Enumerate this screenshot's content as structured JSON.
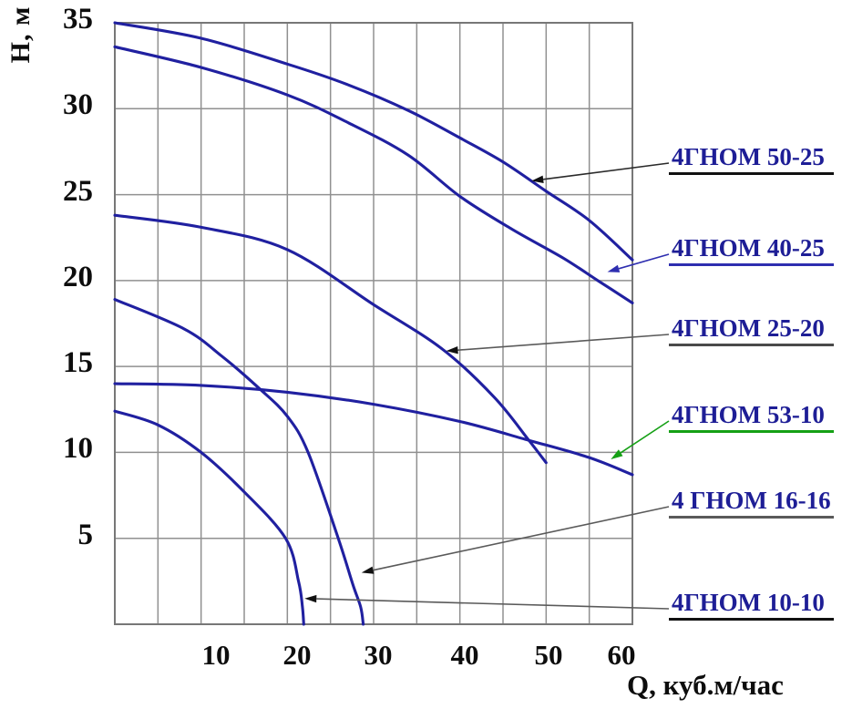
{
  "axes": {
    "y_axis_label": "H, м",
    "x_axis_label": "Q, куб.м/час"
  },
  "chart_data": {
    "type": "line",
    "title": "",
    "xlabel": "Q, куб.м/час",
    "ylabel": "H, м",
    "xlim": [
      0,
      60
    ],
    "ylim": [
      0,
      35
    ],
    "grid": true,
    "grid_step": 5,
    "x_tick_values": [
      10,
      20,
      30,
      40,
      50,
      60
    ],
    "y_tick_values": [
      35,
      30,
      25,
      20,
      15,
      10,
      5
    ],
    "curve_color": "#2020a0",
    "grid_color": "#909090",
    "border_color": "#777777",
    "label_text_color": "#1e1e96",
    "series": [
      {
        "name": "4ГНОМ 50-25",
        "points": [
          [
            0,
            35
          ],
          [
            10,
            34.1
          ],
          [
            20,
            32.6
          ],
          [
            27,
            31.4
          ],
          [
            34,
            29.9
          ],
          [
            40,
            28.3
          ],
          [
            45,
            26.9
          ],
          [
            50,
            25.2
          ],
          [
            55,
            23.5
          ],
          [
            60,
            21.2
          ]
        ]
      },
      {
        "name": "4ГНОМ 40-25",
        "points": [
          [
            0,
            33.6
          ],
          [
            10,
            32.4
          ],
          [
            20,
            30.8
          ],
          [
            27,
            29.2
          ],
          [
            34,
            27.3
          ],
          [
            40,
            24.9
          ],
          [
            46,
            23.0
          ],
          [
            52,
            21.3
          ],
          [
            56,
            20.0
          ],
          [
            60,
            18.7
          ]
        ]
      },
      {
        "name": "4ГНОМ 25-20",
        "points": [
          [
            0,
            23.8
          ],
          [
            10,
            23.1
          ],
          [
            20,
            21.8
          ],
          [
            30,
            18.6
          ],
          [
            38,
            16.0
          ],
          [
            44,
            13.2
          ],
          [
            48,
            10.7
          ],
          [
            50,
            9.4
          ]
        ]
      },
      {
        "name": "4ГНОМ 53-10",
        "points": [
          [
            0,
            14
          ],
          [
            10,
            13.9
          ],
          [
            20,
            13.5
          ],
          [
            30,
            12.8
          ],
          [
            40,
            11.8
          ],
          [
            48,
            10.7
          ],
          [
            55,
            9.7
          ],
          [
            60,
            8.7
          ]
        ]
      },
      {
        "name": "4 ГНОМ 16-16",
        "points": [
          [
            0,
            18.9
          ],
          [
            8,
            17.2
          ],
          [
            12.4,
            15.6
          ],
          [
            16.8,
            13.7
          ],
          [
            20,
            12.1
          ],
          [
            22.4,
            10
          ],
          [
            25.9,
            5
          ],
          [
            27.6,
            2.3
          ],
          [
            28.5,
            1
          ],
          [
            28.8,
            0
          ]
        ]
      },
      {
        "name": "4ГНОМ 10-10",
        "points": [
          [
            0,
            12.4
          ],
          [
            5,
            11.6
          ],
          [
            10,
            10
          ],
          [
            15,
            7.7
          ],
          [
            19.8,
            5
          ],
          [
            21.3,
            2.5
          ],
          [
            21.75,
            1
          ],
          [
            21.9,
            0
          ]
        ]
      }
    ],
    "annotations": [
      {
        "label": "4ГНОМ 50-25",
        "arrow_target": {
          "q": 48.3,
          "h": 25.8
        },
        "text_color": "#1e1e96",
        "underline_color": "#111111",
        "leader_color": "#2a2a2a",
        "arrow_color": "#111111"
      },
      {
        "label": "4ГНОМ 40-25",
        "arrow_target": {
          "q": 57.1,
          "h": 20.5
        },
        "text_color": "#1e1e96",
        "underline_color": "#2e2eb0",
        "leader_color": "#2e2eb0",
        "arrow_color": "#2e2eb0"
      },
      {
        "label": "4ГНОМ 25-20",
        "arrow_target": {
          "q": 38.4,
          "h": 15.9
        },
        "text_color": "#1e1e96",
        "underline_color": "#4a4a4a",
        "leader_color": "#5a5a5a",
        "arrow_color": "#111111"
      },
      {
        "label": "4ГНОМ 53-10",
        "arrow_target": {
          "q": 57.5,
          "h": 9.6
        },
        "text_color": "#1e1e96",
        "underline_color": "#15a015",
        "leader_color": "#15a015",
        "arrow_color": "#15a015"
      },
      {
        "label": "4 ГНОМ 16-16",
        "arrow_target": {
          "q": 28.6,
          "h": 3.0
        },
        "text_color": "#1e1e96",
        "underline_color": "#5a5a5a",
        "leader_color": "#5a5a5a",
        "arrow_color": "#111111"
      },
      {
        "label": "4ГНОМ 10-10",
        "arrow_target": {
          "q": 22.0,
          "h": 1.5
        },
        "text_color": "#1e1e96",
        "underline_color": "#111111",
        "leader_color": "#5a5a5a",
        "arrow_color": "#111111"
      }
    ]
  }
}
